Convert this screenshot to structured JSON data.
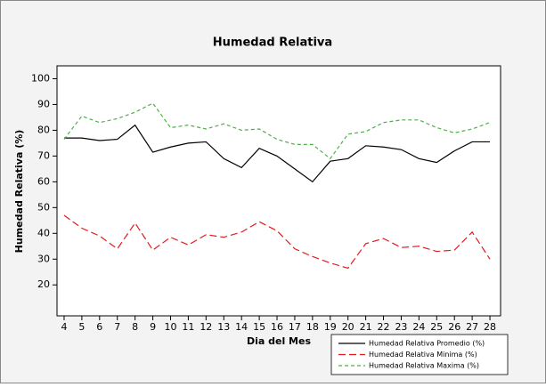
{
  "chart_data": {
    "type": "line",
    "title": "Humedad Relativa",
    "xlabel": "Dia del Mes",
    "ylabel": "Humedad Relativa (%)",
    "x": [
      4,
      5,
      6,
      7,
      8,
      9,
      10,
      11,
      12,
      13,
      14,
      15,
      16,
      17,
      18,
      19,
      20,
      21,
      22,
      23,
      24,
      25,
      26,
      27,
      28
    ],
    "series": [
      {
        "name": "Humedad Relativa Promedio (%)",
        "color": "#000000",
        "dash": "solid",
        "values": [
          77,
          77,
          76,
          76.5,
          82,
          71.5,
          73.5,
          75,
          75.5,
          69,
          65.5,
          73,
          70,
          65,
          60,
          68,
          69,
          74,
          73.5,
          72.5,
          69,
          67.5,
          72,
          75.5,
          75.5
        ]
      },
      {
        "name": "Humedad Relativa Minima (%)",
        "color": "#e41a1c",
        "dash": "long",
        "values": [
          47,
          42,
          39,
          34,
          44,
          33.5,
          38.5,
          35.5,
          39.5,
          38.5,
          40.5,
          44.5,
          41,
          34,
          31,
          28.5,
          26.5,
          36,
          38,
          34.5,
          35,
          33,
          33.5,
          40.5,
          30
        ]
      },
      {
        "name": "Humedad Relativa Maxima (%)",
        "color": "#4daf4a",
        "dash": "short",
        "values": [
          76.5,
          85.5,
          83,
          84.5,
          87,
          90.5,
          81,
          82,
          80.5,
          82.5,
          80,
          80.5,
          76.5,
          74.5,
          74.5,
          69,
          78.5,
          79.5,
          83,
          84,
          84,
          81,
          79,
          80.5,
          83
        ]
      }
    ],
    "xlim": [
      3.6,
      28.6
    ],
    "xticks": [
      4,
      5,
      6,
      7,
      8,
      9,
      10,
      11,
      12,
      13,
      14,
      15,
      16,
      17,
      18,
      19,
      20,
      21,
      22,
      23,
      24,
      25,
      26,
      27,
      28
    ],
    "ylim": [
      8,
      105
    ],
    "yticks": [
      20,
      30,
      40,
      50,
      60,
      70,
      80,
      90,
      100
    ],
    "grid": false,
    "legend": "bottom-right"
  }
}
